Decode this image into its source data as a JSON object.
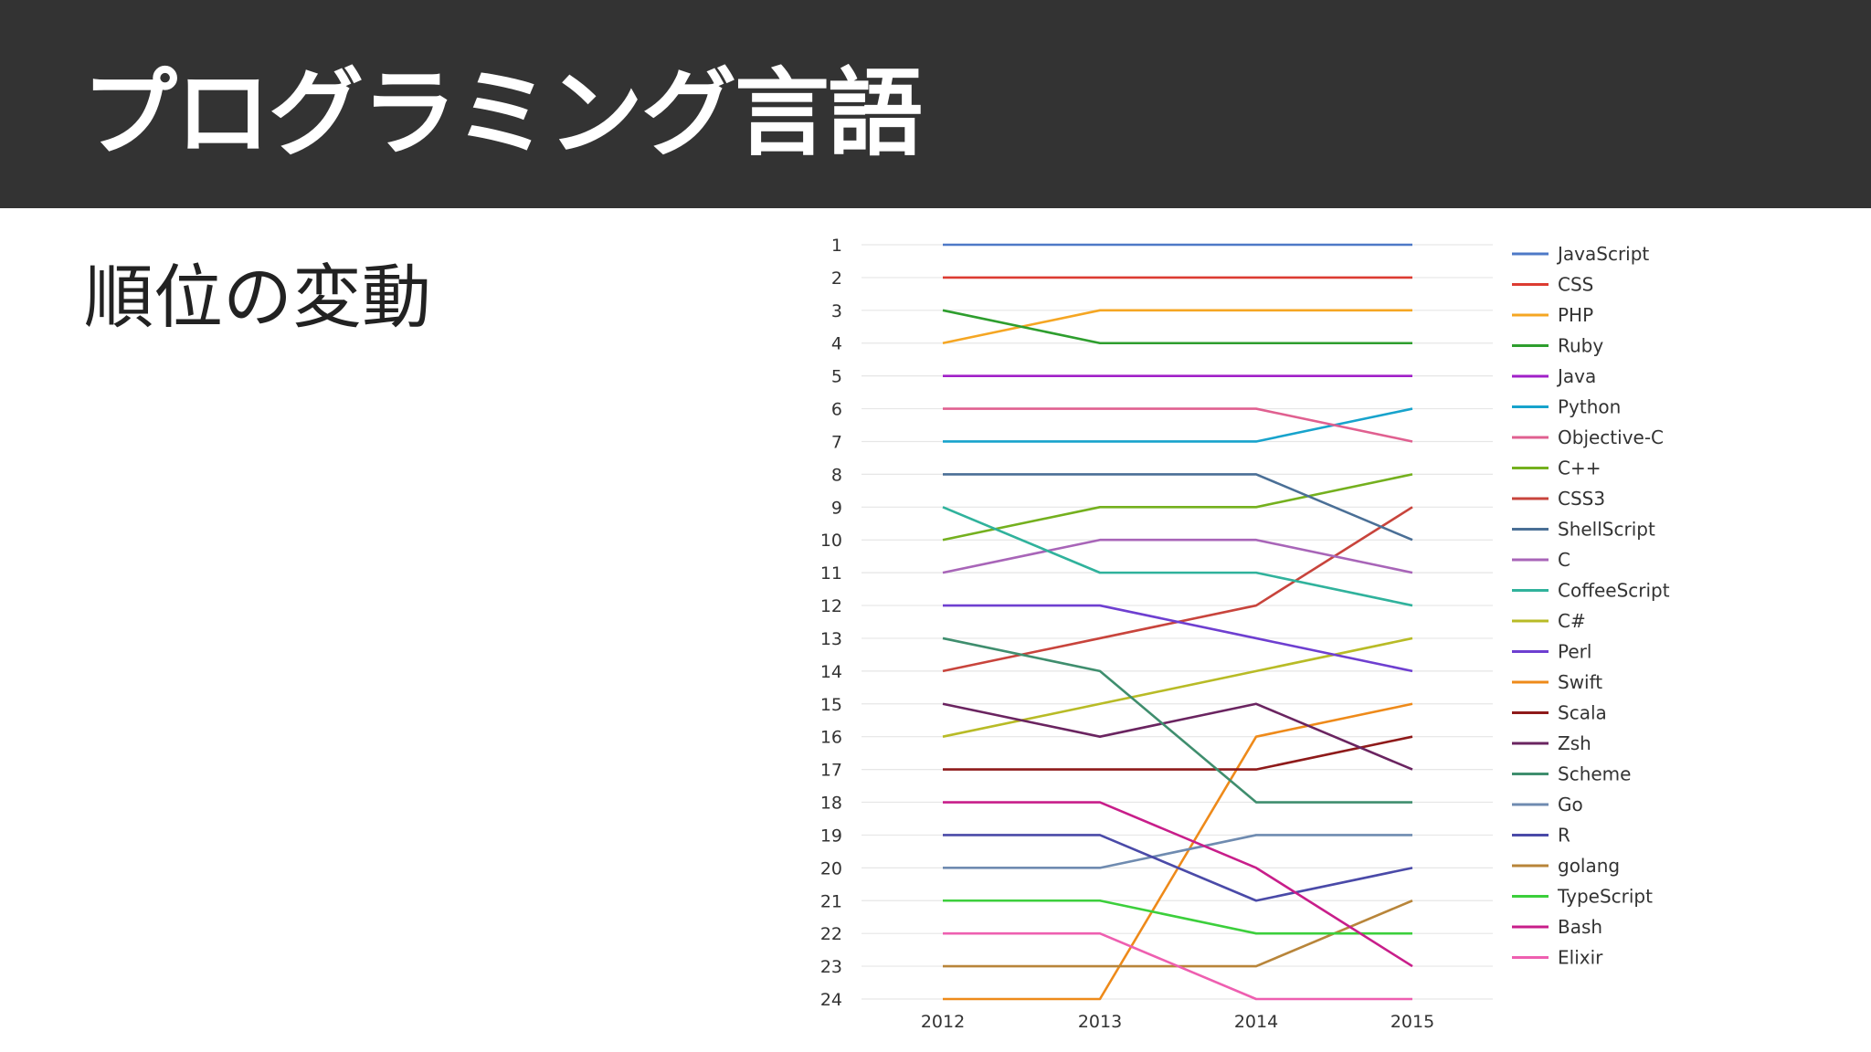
{
  "header": {
    "title": "プログラミング言語"
  },
  "subtitle": "順位の変動",
  "chart_data": {
    "type": "line",
    "x": [
      "2012",
      "2013",
      "2014",
      "2015"
    ],
    "y_ticks": [
      1,
      2,
      3,
      4,
      5,
      6,
      7,
      8,
      9,
      10,
      11,
      12,
      13,
      14,
      15,
      16,
      17,
      18,
      19,
      20,
      21,
      22,
      23,
      24
    ],
    "ylim": [
      1,
      24
    ],
    "y_inverted": true,
    "legend_position": "right",
    "series": [
      {
        "name": "JavaScript",
        "color": "#4E79C7",
        "values": [
          1,
          1,
          1,
          1
        ]
      },
      {
        "name": "CSS",
        "color": "#DC3C32",
        "values": [
          2,
          2,
          2,
          2
        ]
      },
      {
        "name": "PHP",
        "color": "#F5A623",
        "values": [
          4,
          3,
          3,
          3
        ]
      },
      {
        "name": "Ruby",
        "color": "#2E9E2E",
        "values": [
          3,
          4,
          4,
          4
        ]
      },
      {
        "name": "Java",
        "color": "#A020C8",
        "values": [
          5,
          5,
          5,
          5
        ]
      },
      {
        "name": "Python",
        "color": "#17A3CC",
        "values": [
          7,
          7,
          7,
          6
        ]
      },
      {
        "name": "Objective-C",
        "color": "#E06090",
        "values": [
          6,
          6,
          6,
          7
        ]
      },
      {
        "name": "C++",
        "color": "#74B01E",
        "values": [
          10,
          9,
          9,
          8
        ]
      },
      {
        "name": "CSS3",
        "color": "#C8443C",
        "values": [
          14,
          13,
          12,
          9
        ]
      },
      {
        "name": "ShellScript",
        "color": "#4A6F96",
        "values": [
          8,
          8,
          8,
          10
        ]
      },
      {
        "name": "C",
        "color": "#A865B8",
        "values": [
          11,
          10,
          10,
          11
        ]
      },
      {
        "name": "CoffeeScript",
        "color": "#30B29C",
        "values": [
          9,
          11,
          11,
          12
        ]
      },
      {
        "name": "C#",
        "color": "#B8BB26",
        "values": [
          16,
          15,
          14,
          13
        ]
      },
      {
        "name": "Perl",
        "color": "#6E3FD0",
        "values": [
          12,
          12,
          13,
          14
        ]
      },
      {
        "name": "Swift",
        "color": "#EE8A1A",
        "values": [
          24,
          24,
          16,
          15
        ]
      },
      {
        "name": "Scala",
        "color": "#8E1A1A",
        "values": [
          17,
          17,
          17,
          16
        ]
      },
      {
        "name": "Zsh",
        "color": "#6A2460",
        "values": [
          15,
          16,
          15,
          17
        ]
      },
      {
        "name": "Scheme",
        "color": "#3F8E6E",
        "values": [
          13,
          14,
          18,
          18
        ]
      },
      {
        "name": "Go",
        "color": "#6F8BB0",
        "values": [
          20,
          20,
          19,
          19
        ]
      },
      {
        "name": "R",
        "color": "#4A4AA8",
        "values": [
          19,
          19,
          21,
          20
        ]
      },
      {
        "name": "golang",
        "color": "#B8853A",
        "values": [
          23,
          23,
          23,
          21
        ]
      },
      {
        "name": "TypeScript",
        "color": "#3CCF3C",
        "values": [
          21,
          21,
          22,
          22
        ]
      },
      {
        "name": "Bash",
        "color": "#C81E8A",
        "values": [
          18,
          18,
          20,
          23
        ]
      },
      {
        "name": "Elixir",
        "color": "#EE5FB0",
        "values": [
          22,
          22,
          24,
          24
        ]
      }
    ]
  }
}
